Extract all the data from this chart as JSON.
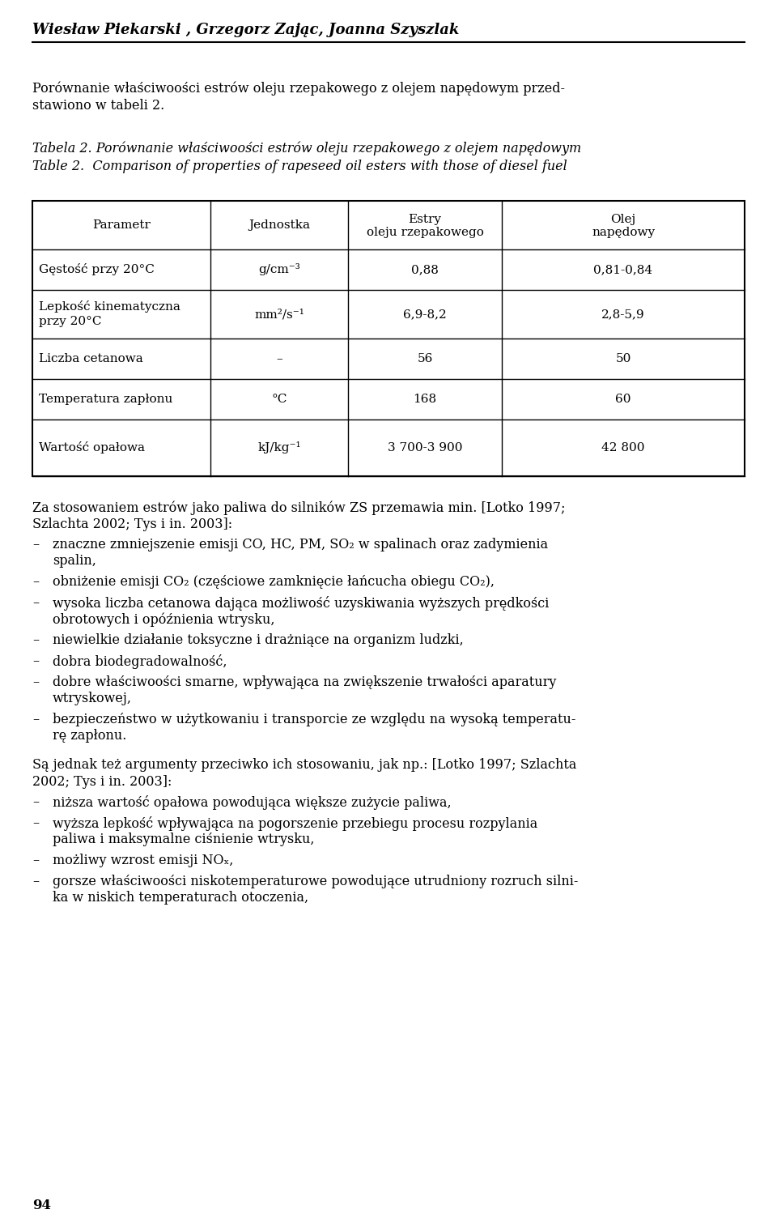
{
  "bg_color": "#ffffff",
  "text_color": "#000000",
  "header_author": "Wiesław Piekarski , Grzegorz Zając, Joanna Szyszlak",
  "para1": "Porównanie właściwoości estrów oleju rzepakowego z olejem napędowym przed-stawiono w tabeli 2.",
  "para1_real": "Porównanie właściwoości estrów oleju rzepakowego z olejem napędowym przedstawiono w tabeli 2.",
  "table_caption_pl": "Tabela 2. Porównanie właściwoości estrów oleju rzepakowego z olejem napędowym",
  "table_caption_en": "Table 2.  Comparison of properties of rapeseed oil esters with those of diesel fuel",
  "table_headers": [
    "Parametr",
    "Jednostka",
    "Estry\noleju rzepakowego",
    "Olej\nnapędowy"
  ],
  "table_rows": [
    [
      "Gęstość przy 20°C",
      "g/cm⁻³",
      "0,88",
      "0,81-0,84"
    ],
    [
      "Lepkość kinematyczna\nprzy 20°C",
      "mm²/s⁻¹",
      "6,9-8,2",
      "2,8-5,9"
    ],
    [
      "Liczba cetanowa",
      "–",
      "56",
      "50"
    ],
    [
      "Temperatura zapłonu",
      "°C",
      "168",
      "60"
    ],
    [
      "Wartość opałowa",
      "kJ/kg⁻¹",
      "3 700-3 900",
      "42 800"
    ]
  ],
  "section_za": "Za stosowaniem estrów jako paliwa do silników ZS przemawia min. [Lotko 1997; Szlachta 2002; Tys i in. 2003]:",
  "bullets_za": [
    "znaczne zmniejszenie emisji CO, HC, PM, SO₂ w spalinach oraz zadymienia spalin,",
    "obniżenie emisji CO₂ (częściowe zamknięcie łańcucha obiegu CO₂),",
    "wysoka liczba cetanowa dająca możliwość uzyskiwania wyższych prędkości obrotowych i opóźnienia wtrysku,",
    "niewielkie działanie toksyczne i drażniące na organizm ludzki,",
    "dobra biodegradowalność,",
    "dobre właściwoości smarne, wpływająca na zwiększenie trwałości aparatury wtryskowej,",
    "bezpieczeństwo w użytkowaniu i transporcie ze względu na wysoką temperatu-rę zapłonu."
  ],
  "section_sa": "Są jednak też argumenty przeciwko ich stosowaniu, jak np.: [Lotko 1997; Szlachta 2002; Tys i in. 2003]:",
  "bullets_sa": [
    "niższa wartość opałowa powodująca większe zużycie paliwa,",
    "wyższa lepkość wpływająca na pogorszenie przebiegu procesu rozpylania paliwa i maksymalne ciśnienie wtrysku,",
    "możliwy wzrost emisji NOₓ,",
    "gorsze właściwoości niskotemperaturowe powodujące utrudniony rozruch silni-ka w niskich temperaturach otoczenia,"
  ],
  "page_number": "94"
}
